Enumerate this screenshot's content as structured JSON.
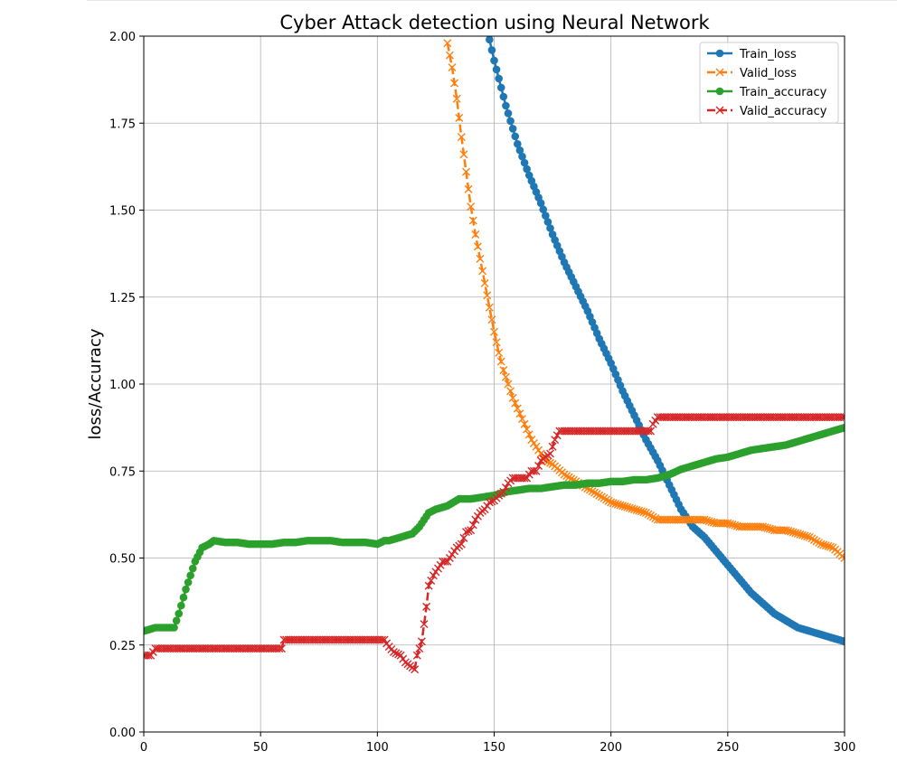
{
  "chart_data": {
    "type": "line",
    "title": "Cyber Attack detection using Neural Network",
    "xlabel": "",
    "ylabel": "loss/Accuracy",
    "xlim": [
      0,
      300
    ],
    "ylim": [
      0,
      2.0
    ],
    "xticks": [
      0,
      50,
      100,
      150,
      200,
      250,
      300
    ],
    "yticks": [
      0.0,
      0.25,
      0.5,
      0.75,
      1.0,
      1.25,
      1.5,
      1.75,
      2.0
    ],
    "xtick_labels": [
      "0",
      "50",
      "100",
      "150",
      "200",
      "250",
      "300"
    ],
    "ytick_labels": [
      "0.00",
      "0.25",
      "0.50",
      "0.75",
      "1.00",
      "1.25",
      "1.50",
      "1.75",
      "2.00"
    ],
    "grid": true,
    "legend_position": "top-right",
    "series": [
      {
        "name": "Train_loss",
        "color": "#1f77b4",
        "marker": "o",
        "linestyle": "solid",
        "x": [
          148,
          150,
          155,
          160,
          165,
          170,
          175,
          180,
          185,
          190,
          195,
          200,
          205,
          210,
          215,
          220,
          225,
          230,
          235,
          240,
          245,
          250,
          255,
          260,
          265,
          270,
          275,
          280,
          285,
          290,
          295,
          300
        ],
        "y": [
          1.99,
          1.93,
          1.8,
          1.69,
          1.6,
          1.52,
          1.43,
          1.35,
          1.28,
          1.21,
          1.13,
          1.06,
          0.98,
          0.91,
          0.84,
          0.78,
          0.71,
          0.64,
          0.59,
          0.56,
          0.52,
          0.48,
          0.44,
          0.4,
          0.37,
          0.34,
          0.32,
          0.3,
          0.29,
          0.28,
          0.27,
          0.26
        ]
      },
      {
        "name": "Valid_loss",
        "color": "#ff7f0e",
        "marker": "x",
        "linestyle": "dashed",
        "x": [
          130,
          132,
          134,
          136,
          138,
          140,
          142,
          144,
          146,
          148,
          150,
          152,
          154,
          156,
          158,
          160,
          162,
          164,
          166,
          168,
          170,
          172,
          175,
          180,
          185,
          190,
          195,
          200,
          205,
          210,
          215,
          220,
          225,
          230,
          235,
          240,
          245,
          250,
          255,
          260,
          265,
          270,
          275,
          280,
          285,
          290,
          295,
          300
        ],
        "y": [
          1.98,
          1.91,
          1.82,
          1.71,
          1.61,
          1.51,
          1.43,
          1.36,
          1.29,
          1.22,
          1.15,
          1.09,
          1.04,
          1.0,
          0.96,
          0.93,
          0.9,
          0.87,
          0.84,
          0.82,
          0.8,
          0.78,
          0.77,
          0.74,
          0.72,
          0.7,
          0.68,
          0.66,
          0.65,
          0.64,
          0.63,
          0.61,
          0.61,
          0.61,
          0.61,
          0.61,
          0.6,
          0.6,
          0.59,
          0.59,
          0.59,
          0.58,
          0.58,
          0.57,
          0.56,
          0.54,
          0.53,
          0.5
        ]
      },
      {
        "name": "Train_accuracy",
        "color": "#2ca02c",
        "marker": "o",
        "linestyle": "solid",
        "x": [
          0,
          5,
          10,
          13,
          15,
          18,
          20,
          22,
          25,
          28,
          30,
          35,
          40,
          45,
          50,
          55,
          60,
          65,
          70,
          75,
          80,
          85,
          90,
          95,
          100,
          103,
          105,
          110,
          115,
          118,
          120,
          122,
          125,
          130,
          135,
          140,
          145,
          150,
          155,
          160,
          165,
          170,
          175,
          180,
          185,
          190,
          195,
          200,
          205,
          210,
          215,
          220,
          225,
          230,
          235,
          240,
          245,
          250,
          255,
          260,
          265,
          270,
          275,
          280,
          285,
          290,
          295,
          300
        ],
        "y": [
          0.29,
          0.3,
          0.3,
          0.3,
          0.34,
          0.41,
          0.45,
          0.49,
          0.53,
          0.54,
          0.55,
          0.545,
          0.545,
          0.54,
          0.54,
          0.54,
          0.545,
          0.545,
          0.55,
          0.55,
          0.55,
          0.545,
          0.545,
          0.545,
          0.54,
          0.55,
          0.55,
          0.56,
          0.57,
          0.59,
          0.61,
          0.63,
          0.64,
          0.65,
          0.67,
          0.67,
          0.675,
          0.68,
          0.69,
          0.695,
          0.7,
          0.7,
          0.705,
          0.71,
          0.71,
          0.715,
          0.715,
          0.72,
          0.72,
          0.725,
          0.725,
          0.73,
          0.74,
          0.755,
          0.765,
          0.775,
          0.785,
          0.79,
          0.8,
          0.81,
          0.815,
          0.82,
          0.825,
          0.835,
          0.845,
          0.855,
          0.865,
          0.875
        ]
      },
      {
        "name": "Valid_accuracy",
        "color": "#d62728",
        "marker": "x",
        "linestyle": "dashed",
        "x": [
          0,
          3,
          4,
          5,
          10,
          20,
          30,
          40,
          50,
          55,
          59,
          60,
          70,
          80,
          90,
          100,
          103,
          105,
          107,
          110,
          112,
          114,
          116,
          117,
          118,
          119,
          120,
          121,
          122,
          124,
          126,
          128,
          130,
          132,
          134,
          136,
          138,
          140,
          142,
          144,
          146,
          148,
          150,
          152,
          154,
          156,
          158,
          160,
          162,
          164,
          166,
          168,
          170,
          172,
          174,
          176,
          178,
          180,
          190,
          200,
          210,
          217,
          218,
          220,
          230,
          240,
          250,
          260,
          270,
          280,
          290,
          300
        ],
        "y": [
          0.22,
          0.22,
          0.23,
          0.24,
          0.24,
          0.24,
          0.24,
          0.24,
          0.24,
          0.24,
          0.24,
          0.265,
          0.265,
          0.265,
          0.265,
          0.265,
          0.265,
          0.245,
          0.23,
          0.22,
          0.2,
          0.19,
          0.18,
          0.22,
          0.24,
          0.26,
          0.31,
          0.36,
          0.42,
          0.45,
          0.47,
          0.49,
          0.49,
          0.51,
          0.53,
          0.54,
          0.575,
          0.58,
          0.61,
          0.63,
          0.64,
          0.66,
          0.665,
          0.68,
          0.69,
          0.715,
          0.73,
          0.73,
          0.73,
          0.73,
          0.75,
          0.75,
          0.78,
          0.79,
          0.8,
          0.84,
          0.865,
          0.865,
          0.865,
          0.865,
          0.865,
          0.865,
          0.885,
          0.905,
          0.905,
          0.905,
          0.905,
          0.905,
          0.905,
          0.905,
          0.905,
          0.905
        ]
      }
    ]
  }
}
